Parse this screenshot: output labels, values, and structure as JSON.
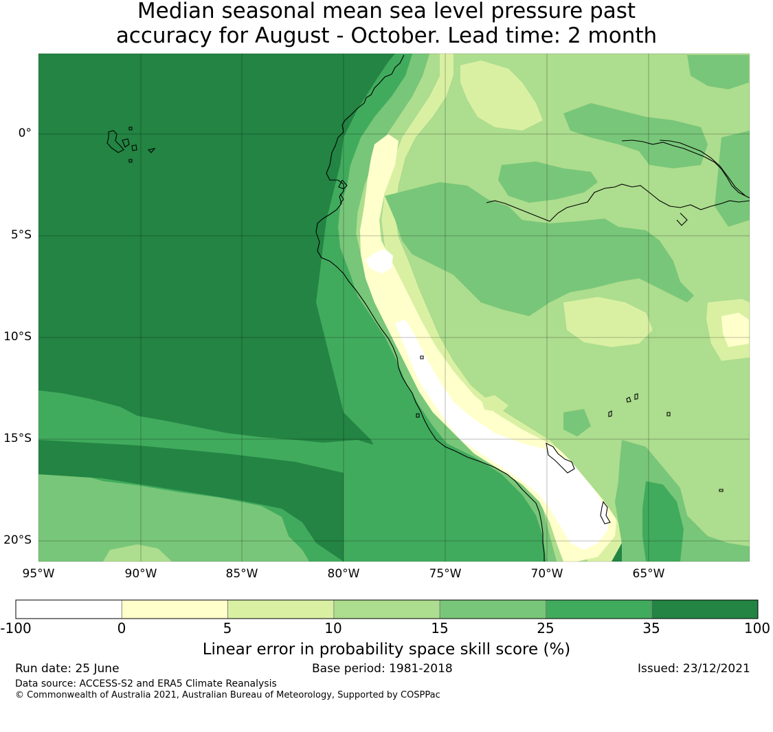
{
  "title": {
    "line1": "Median seasonal mean sea level pressure past",
    "line2": "accuracy for August - October. Lead time: 2 month"
  },
  "map": {
    "lat_labels": [
      "0°",
      "5°S",
      "10°S",
      "15°S",
      "20°S"
    ],
    "lon_labels": [
      "95°W",
      "90°W",
      "85°W",
      "80°W",
      "75°W",
      "70°W",
      "65°W"
    ],
    "colors": {
      "below_0": "#ffffff",
      "0_5": "#ffffcc",
      "5_10": "#d9f0a3",
      "10_15": "#addd8e",
      "15_25": "#78c679",
      "25_35": "#41ab5d",
      "35_100": "#238443"
    }
  },
  "colorbar": {
    "ticks": [
      "-100",
      "0",
      "5",
      "10",
      "15",
      "25",
      "35",
      "100"
    ],
    "colors": [
      "#ffffff",
      "#ffffcc",
      "#d9f0a3",
      "#addd8e",
      "#78c679",
      "#41ab5d",
      "#238443"
    ],
    "label": "Linear error in probability space skill score (%)"
  },
  "footer": {
    "run_date": "Run date: 25 June",
    "base_period": "Base period: 1981-2018",
    "issued": "Issued: 23/12/2021",
    "data_source": "Data source: ACCESS-S2 and ERA5 Climate Reanalysis",
    "copyright": "© Commonwealth of Australia 2021, Australian Bureau of Meteorology, Supported by COSPPac"
  }
}
